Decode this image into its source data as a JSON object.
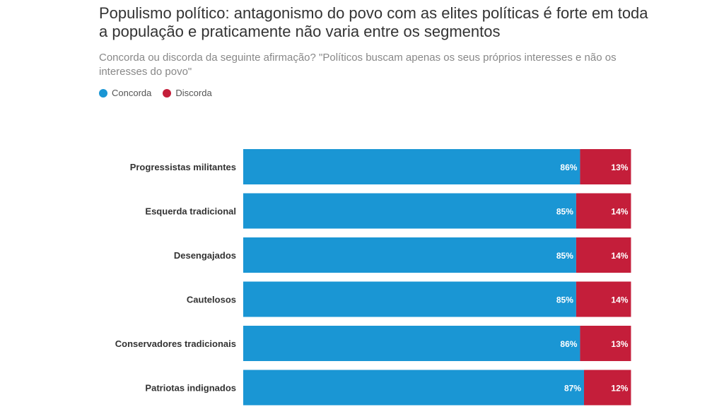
{
  "chart_data": {
    "type": "bar",
    "orientation": "horizontal",
    "stacked": true,
    "title": "Populismo político: antagonismo do povo com as elites políticas é forte em toda a população e praticamente não varia entre os segmentos",
    "subtitle": "Concorda ou discorda da seguinte afirmação? \"Políticos buscam apenas os seus próprios interesses e não os interesses do povo\"",
    "categories": [
      "Progressistas militantes",
      "Esquerda tradicional",
      "Desengajados",
      "Cautelosos",
      "Conservadores tradicionais",
      "Patriotas indignados"
    ],
    "series": [
      {
        "name": "Concorda",
        "color": "#1a96d4",
        "values": [
          86,
          85,
          85,
          85,
          86,
          87
        ]
      },
      {
        "name": "Discorda",
        "color": "#c41e3a",
        "values": [
          13,
          14,
          14,
          14,
          13,
          12
        ]
      }
    ],
    "value_suffix": "%",
    "legend_position": "top-left"
  }
}
